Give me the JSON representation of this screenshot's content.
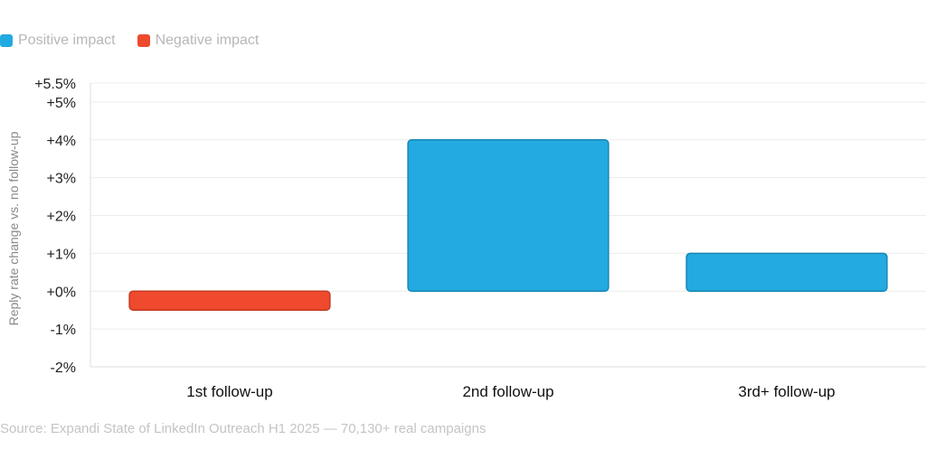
{
  "legend": [
    {
      "label": "Positive impact",
      "color": "#22aae1"
    },
    {
      "label": "Negative impact",
      "color": "#ef4a2d"
    }
  ],
  "chart_data": {
    "type": "bar",
    "categories": [
      "1st follow-up",
      "2nd follow-up",
      "3rd+ follow-up"
    ],
    "values": [
      -0.5,
      4.0,
      1.0
    ],
    "ylabel": "Reply rate change vs. no follow-up",
    "ylim": [
      -2,
      5.5
    ],
    "yticks": [
      -2,
      -1,
      0,
      1,
      2,
      3,
      4,
      5,
      5.5
    ],
    "ytick_labels": [
      "-2%",
      "-1%",
      "+0%",
      "+1%",
      "+2%",
      "+3%",
      "+4%",
      "+5%",
      "+5.5%"
    ],
    "grid": true,
    "legend_position": "top-left",
    "colors": {
      "positive": "#22aae1",
      "negative": "#ef4a2d"
    }
  },
  "source": "Source: Expandi State of LinkedIn Outreach H1 2025 — 70,130+ real campaigns"
}
